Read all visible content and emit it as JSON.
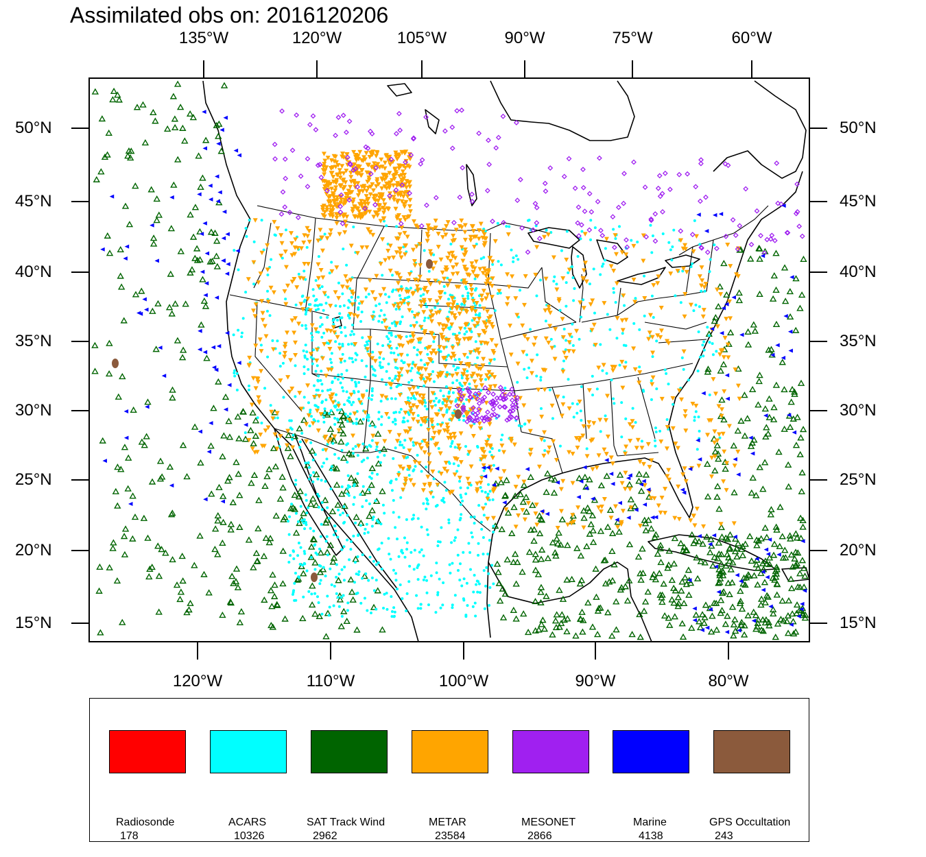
{
  "title": "Assimilated obs on: 2016120206",
  "map": {
    "top_axis_labels": [
      "135°W",
      "120°W",
      "105°W",
      "90°W",
      "75°W",
      "60°W"
    ],
    "bottom_axis_labels": [
      "120°W",
      "110°W",
      "100°W",
      "90°W",
      "80°W"
    ],
    "left_axis_labels": [
      "50°N",
      "45°N",
      "40°N",
      "35°N",
      "30°N",
      "25°N",
      "20°N",
      "15°N"
    ],
    "right_axis_labels": [
      "50°N",
      "45°N",
      "40°N",
      "35°N",
      "30°N",
      "25°N",
      "20°N",
      "15°N"
    ],
    "projection": "Lambert conformal (CONUS regional domain)",
    "ob_symbols": {
      "ACARS": "filled-circle",
      "SAT Track Wind": "open-triangle",
      "METAR": "filled-inverted-triangle",
      "MESONET": "open-diamond",
      "Marine": "filled-left-triangle",
      "GPS Occultation": "filled-blob"
    }
  },
  "legend": {
    "items": [
      {
        "name": "Radiosonde",
        "count": "178",
        "color": "#ff0000"
      },
      {
        "name": "ACARS",
        "count": "10326",
        "color": "#00ffff"
      },
      {
        "name": "SAT Track Wind",
        "count": "2962",
        "color": "#006400"
      },
      {
        "name": "METAR",
        "count": "23584",
        "color": "#ffa500"
      },
      {
        "name": "MESONET",
        "count": "2866",
        "color": "#a020f0"
      },
      {
        "name": "Marine",
        "count": "4138",
        "color": "#0000ff"
      },
      {
        "name": "GPS Occultation",
        "count": "243",
        "color": "#8b5a3c"
      }
    ]
  }
}
